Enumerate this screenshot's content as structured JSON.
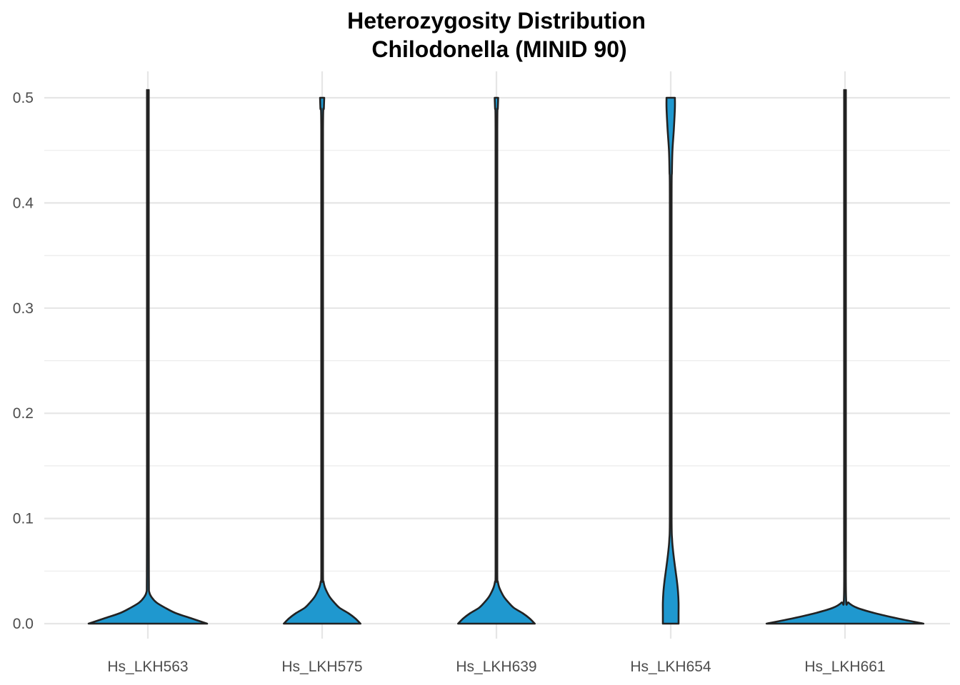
{
  "chart_data": {
    "type": "violin",
    "title": "Heterozygosity Distribution",
    "subtitle": "Chilodonella (MINID 90)",
    "xlabel": "",
    "ylabel": "",
    "ylim": [
      0.0,
      0.5
    ],
    "yticks": [
      "0.0",
      "0.1",
      "0.2",
      "0.3",
      "0.4",
      "0.5"
    ],
    "grid": true,
    "fill_color": "#1f98cf",
    "outline_color": "#222222",
    "categories": [
      "Hs_LKH563",
      "Hs_LKH575",
      "Hs_LKH639",
      "Hs_LKH654",
      "Hs_LKH661"
    ],
    "density_profiles": [
      {
        "name": "Hs_LKH563",
        "y": [
          0.0,
          0.005,
          0.01,
          0.015,
          0.02,
          0.025,
          0.03,
          0.04,
          0.1,
          0.3,
          0.49,
          0.5
        ],
        "half_width": [
          0.34,
          0.25,
          0.16,
          0.1,
          0.05,
          0.022,
          0.008,
          0.006,
          0.005,
          0.005,
          0.005,
          0.005
        ]
      },
      {
        "name": "Hs_LKH575",
        "y": [
          0.0,
          0.005,
          0.01,
          0.015,
          0.02,
          0.025,
          0.03,
          0.035,
          0.04,
          0.045,
          0.1,
          0.3,
          0.47,
          0.49,
          0.5
        ],
        "half_width": [
          0.22,
          0.19,
          0.15,
          0.1,
          0.07,
          0.045,
          0.028,
          0.015,
          0.008,
          0.005,
          0.005,
          0.005,
          0.005,
          0.01,
          0.012
        ]
      },
      {
        "name": "Hs_LKH639",
        "y": [
          0.0,
          0.005,
          0.01,
          0.015,
          0.02,
          0.025,
          0.03,
          0.035,
          0.04,
          0.045,
          0.1,
          0.3,
          0.47,
          0.49,
          0.5
        ],
        "half_width": [
          0.22,
          0.19,
          0.15,
          0.1,
          0.07,
          0.045,
          0.028,
          0.015,
          0.008,
          0.005,
          0.005,
          0.005,
          0.005,
          0.008,
          0.01
        ]
      },
      {
        "name": "Hs_LKH654",
        "y": [
          0.0,
          0.01,
          0.02,
          0.03,
          0.04,
          0.05,
          0.06,
          0.07,
          0.08,
          0.1,
          0.2,
          0.4,
          0.43,
          0.45,
          0.47,
          0.49,
          0.5
        ],
        "half_width": [
          0.045,
          0.045,
          0.045,
          0.042,
          0.036,
          0.028,
          0.02,
          0.013,
          0.008,
          0.005,
          0.005,
          0.005,
          0.007,
          0.01,
          0.018,
          0.024,
          0.024
        ]
      },
      {
        "name": "Hs_LKH661",
        "y": [
          0.0,
          0.005,
          0.01,
          0.015,
          0.02,
          0.025,
          0.1,
          0.3,
          0.49,
          0.5
        ],
        "half_width": [
          0.45,
          0.3,
          0.17,
          0.07,
          0.02,
          0.006,
          0.005,
          0.005,
          0.005,
          0.005
        ]
      }
    ]
  }
}
